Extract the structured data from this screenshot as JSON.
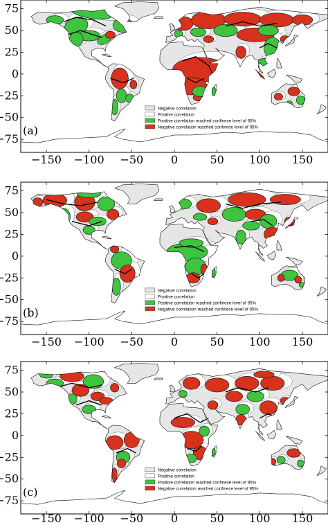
{
  "colors": {
    "positive_sig": "#3ec43e",
    "negative_sig": "#d8321c",
    "negative": "#e6e6e6",
    "positive": "#ffffff",
    "coast": "#111111",
    "contour": "#000000"
  },
  "chart_data": [
    {
      "type": "map",
      "panel_label": "(a)",
      "xlim": [
        -180,
        180
      ],
      "ylim": [
        -90,
        85
      ],
      "xticks": [
        "-150",
        "-100",
        "-50",
        "0",
        "50",
        "100",
        "150"
      ],
      "yticks": [
        "75",
        "50",
        "25",
        "0",
        "-25",
        "-50",
        "-75"
      ],
      "legend": {
        "position": "lower-right",
        "entries": [
          {
            "label": "Negative correlation",
            "swatch": "negative"
          },
          {
            "label": "Positive correlation",
            "swatch": "positive"
          },
          {
            "label": "Positive correlation reached confinece level of 95%",
            "swatch": "positive_sig"
          },
          {
            "label": "Negative correlation reached confinece level of 95%",
            "swatch": "negative_sig"
          }
        ]
      }
    },
    {
      "type": "map",
      "panel_label": "(b)",
      "xlim": [
        -180,
        180
      ],
      "ylim": [
        -90,
        85
      ],
      "xticks": [
        "-150",
        "-100",
        "-50",
        "0",
        "50",
        "100",
        "150"
      ],
      "yticks": [
        "75",
        "50",
        "25",
        "0",
        "-25",
        "-50",
        "-75"
      ],
      "legend": {
        "position": "lower-right",
        "entries": [
          {
            "label": "Negative correlation",
            "swatch": "negative"
          },
          {
            "label": "Positive correlation",
            "swatch": "positive"
          },
          {
            "label": "Positive correlation reached confinece level of 95%",
            "swatch": "positive_sig"
          },
          {
            "label": "Negative correlation reached confinece level of 95%",
            "swatch": "negative_sig"
          }
        ]
      }
    },
    {
      "type": "map",
      "panel_label": "(c)",
      "xlim": [
        -180,
        180
      ],
      "ylim": [
        -90,
        85
      ],
      "xticks": [
        "-150",
        "-100",
        "-50",
        "0",
        "50",
        "100",
        "150"
      ],
      "yticks": [
        "75",
        "50",
        "25",
        "0",
        "-25",
        "-50",
        "-75"
      ],
      "legend": {
        "position": "lower-right",
        "entries": [
          {
            "label": "Negative correlation",
            "swatch": "negative"
          },
          {
            "label": "Positive correlation",
            "swatch": "positive"
          },
          {
            "label": "Positive correlation reached confinece level of 95%",
            "swatch": "positive_sig"
          },
          {
            "label": "Negative correlation reached confinece level of 95%",
            "swatch": "negative_sig"
          }
        ]
      }
    }
  ]
}
